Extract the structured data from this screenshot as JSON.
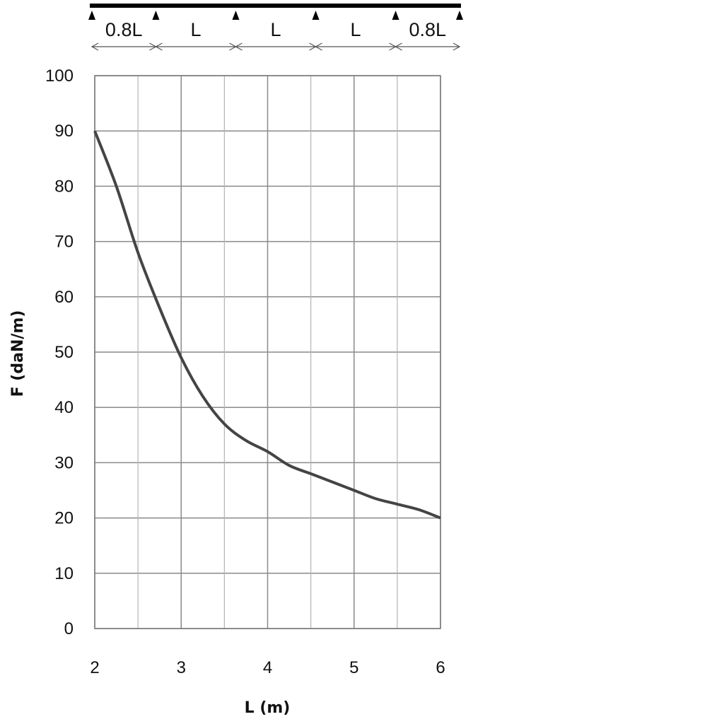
{
  "beam_diagram": {
    "span_labels": [
      "0.8L",
      "L",
      "L",
      "L",
      "0.8L"
    ],
    "span_ratios": [
      0.8,
      1,
      1,
      1,
      0.8
    ]
  },
  "chart_data": {
    "type": "line",
    "xlabel": "L (m)",
    "ylabel": "F (daN/m)",
    "xlim": [
      2,
      6
    ],
    "ylim": [
      0,
      100
    ],
    "x_ticks": [
      2,
      3,
      4,
      5,
      6
    ],
    "y_ticks": [
      0,
      10,
      20,
      30,
      40,
      50,
      60,
      70,
      80,
      90,
      100
    ],
    "grid": true,
    "series": [
      {
        "color": "#444444",
        "x": [
          2.0,
          2.25,
          2.5,
          2.75,
          3.0,
          3.25,
          3.5,
          3.75,
          4.0,
          4.25,
          4.5,
          4.75,
          5.0,
          5.25,
          5.5,
          5.75,
          6.0
        ],
        "y": [
          90,
          80,
          68,
          58,
          49,
          42,
          37,
          34,
          32,
          29.5,
          28,
          26.5,
          25,
          23.5,
          22.5,
          21.5,
          20
        ]
      }
    ]
  }
}
